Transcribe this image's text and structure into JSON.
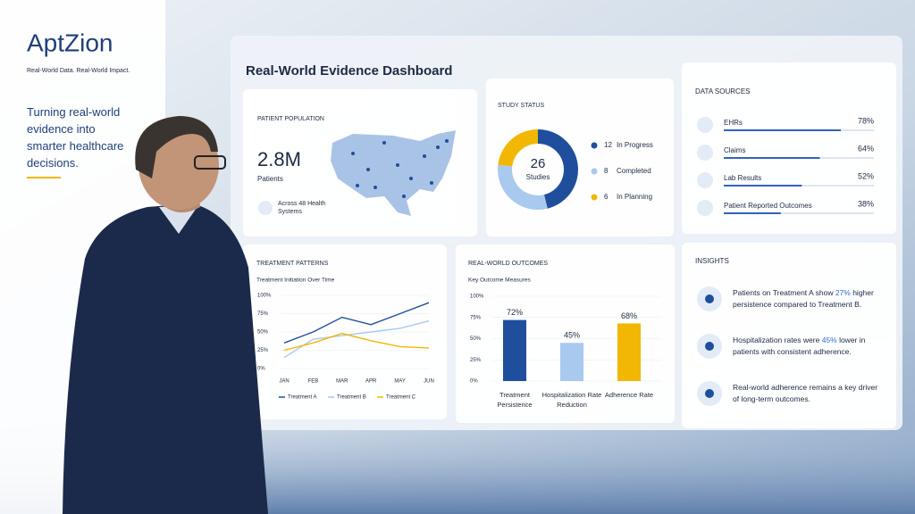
{
  "brand": {
    "name": "AptZion",
    "tagline": "Real-World Data. Real-World Impact."
  },
  "headline": "Turning real-world evidence into smarter healthcare decisions.",
  "dashboard": {
    "title": "Real-World Evidence Dashboard",
    "patient_population": {
      "title": "PATIENT POPULATION",
      "value": "2.8M",
      "label": "Patients",
      "note": "Across 48 Health Systems"
    },
    "study_status": {
      "type": "donut",
      "title": "STUDY STATUS",
      "total": 26,
      "total_label": "Studies",
      "series": [
        {
          "name": "In Progress",
          "value": 12,
          "color": "#1f4e9c"
        },
        {
          "name": "Completed",
          "value": 8,
          "color": "#a9c9ef"
        },
        {
          "name": "In Planning",
          "value": 6,
          "color": "#f2b705"
        }
      ]
    },
    "data_sources": {
      "type": "bar",
      "title": "DATA SOURCES",
      "categories": [
        "EHRs",
        "Claims",
        "Lab Results",
        "Patient Reported Outcomes"
      ],
      "values": [
        78,
        64,
        52,
        38
      ],
      "value_labels": [
        "78%",
        "64%",
        "52%",
        "38%"
      ],
      "color": "#2f63c0",
      "xlim": [
        0,
        100
      ]
    },
    "treatment_patterns": {
      "type": "line",
      "title": "TREATMENT PATTERNS",
      "subtitle": "Treatment Initiation Over Time",
      "categories": [
        "JAN",
        "FEB",
        "MAR",
        "APR",
        "MAY",
        "JUN"
      ],
      "series": [
        {
          "name": "Treatment A",
          "color": "#1f4e9c",
          "values": [
            35,
            50,
            70,
            60,
            75,
            90
          ]
        },
        {
          "name": "Treatment B",
          "color": "#a9c9ef",
          "values": [
            15,
            40,
            45,
            50,
            55,
            65
          ]
        },
        {
          "name": "Treatment C",
          "color": "#f2b705",
          "values": [
            25,
            35,
            48,
            38,
            30,
            28
          ]
        }
      ],
      "ylim": [
        0,
        100
      ],
      "yticks": [
        {
          "value": 0,
          "label": "0%"
        },
        {
          "value": 25,
          "label": "25%"
        },
        {
          "value": 50,
          "label": "50%"
        },
        {
          "value": 75,
          "label": "75%"
        },
        {
          "value": 100,
          "label": "100%"
        }
      ],
      "grid": true
    },
    "real_world_outcomes": {
      "type": "bar",
      "title": "REAL-WORLD OUTCOMES",
      "subtitle": "Key Outcome Measures",
      "categories": [
        "Treatment Persistence",
        "Hospitalization Rate Reduction",
        "Adherence Rate"
      ],
      "values": [
        72,
        45,
        68
      ],
      "value_labels": [
        "72%",
        "45%",
        "68%"
      ],
      "colors": [
        "#1f4e9c",
        "#a9c9ef",
        "#f2b705"
      ],
      "ylim": [
        0,
        100
      ],
      "yticks": [
        {
          "value": 0,
          "label": "0%"
        },
        {
          "value": 25,
          "label": "25%"
        },
        {
          "value": 50,
          "label": "50%"
        },
        {
          "value": 75,
          "label": "75%"
        },
        {
          "value": 100,
          "label": "100%"
        }
      ],
      "grid": true
    },
    "insights": {
      "title": "INSIGHTS",
      "items": [
        {
          "before": "Patients on Treatment A show ",
          "highlight": "27%",
          "after": " higher persistence compared to Treatment B."
        },
        {
          "before": "Hospitalization rates were ",
          "highlight": "45%",
          "after": " lower in patients with consistent adherence."
        },
        {
          "before": "Real-world adherence remains a key driver of long-term outcomes."
        }
      ]
    }
  }
}
